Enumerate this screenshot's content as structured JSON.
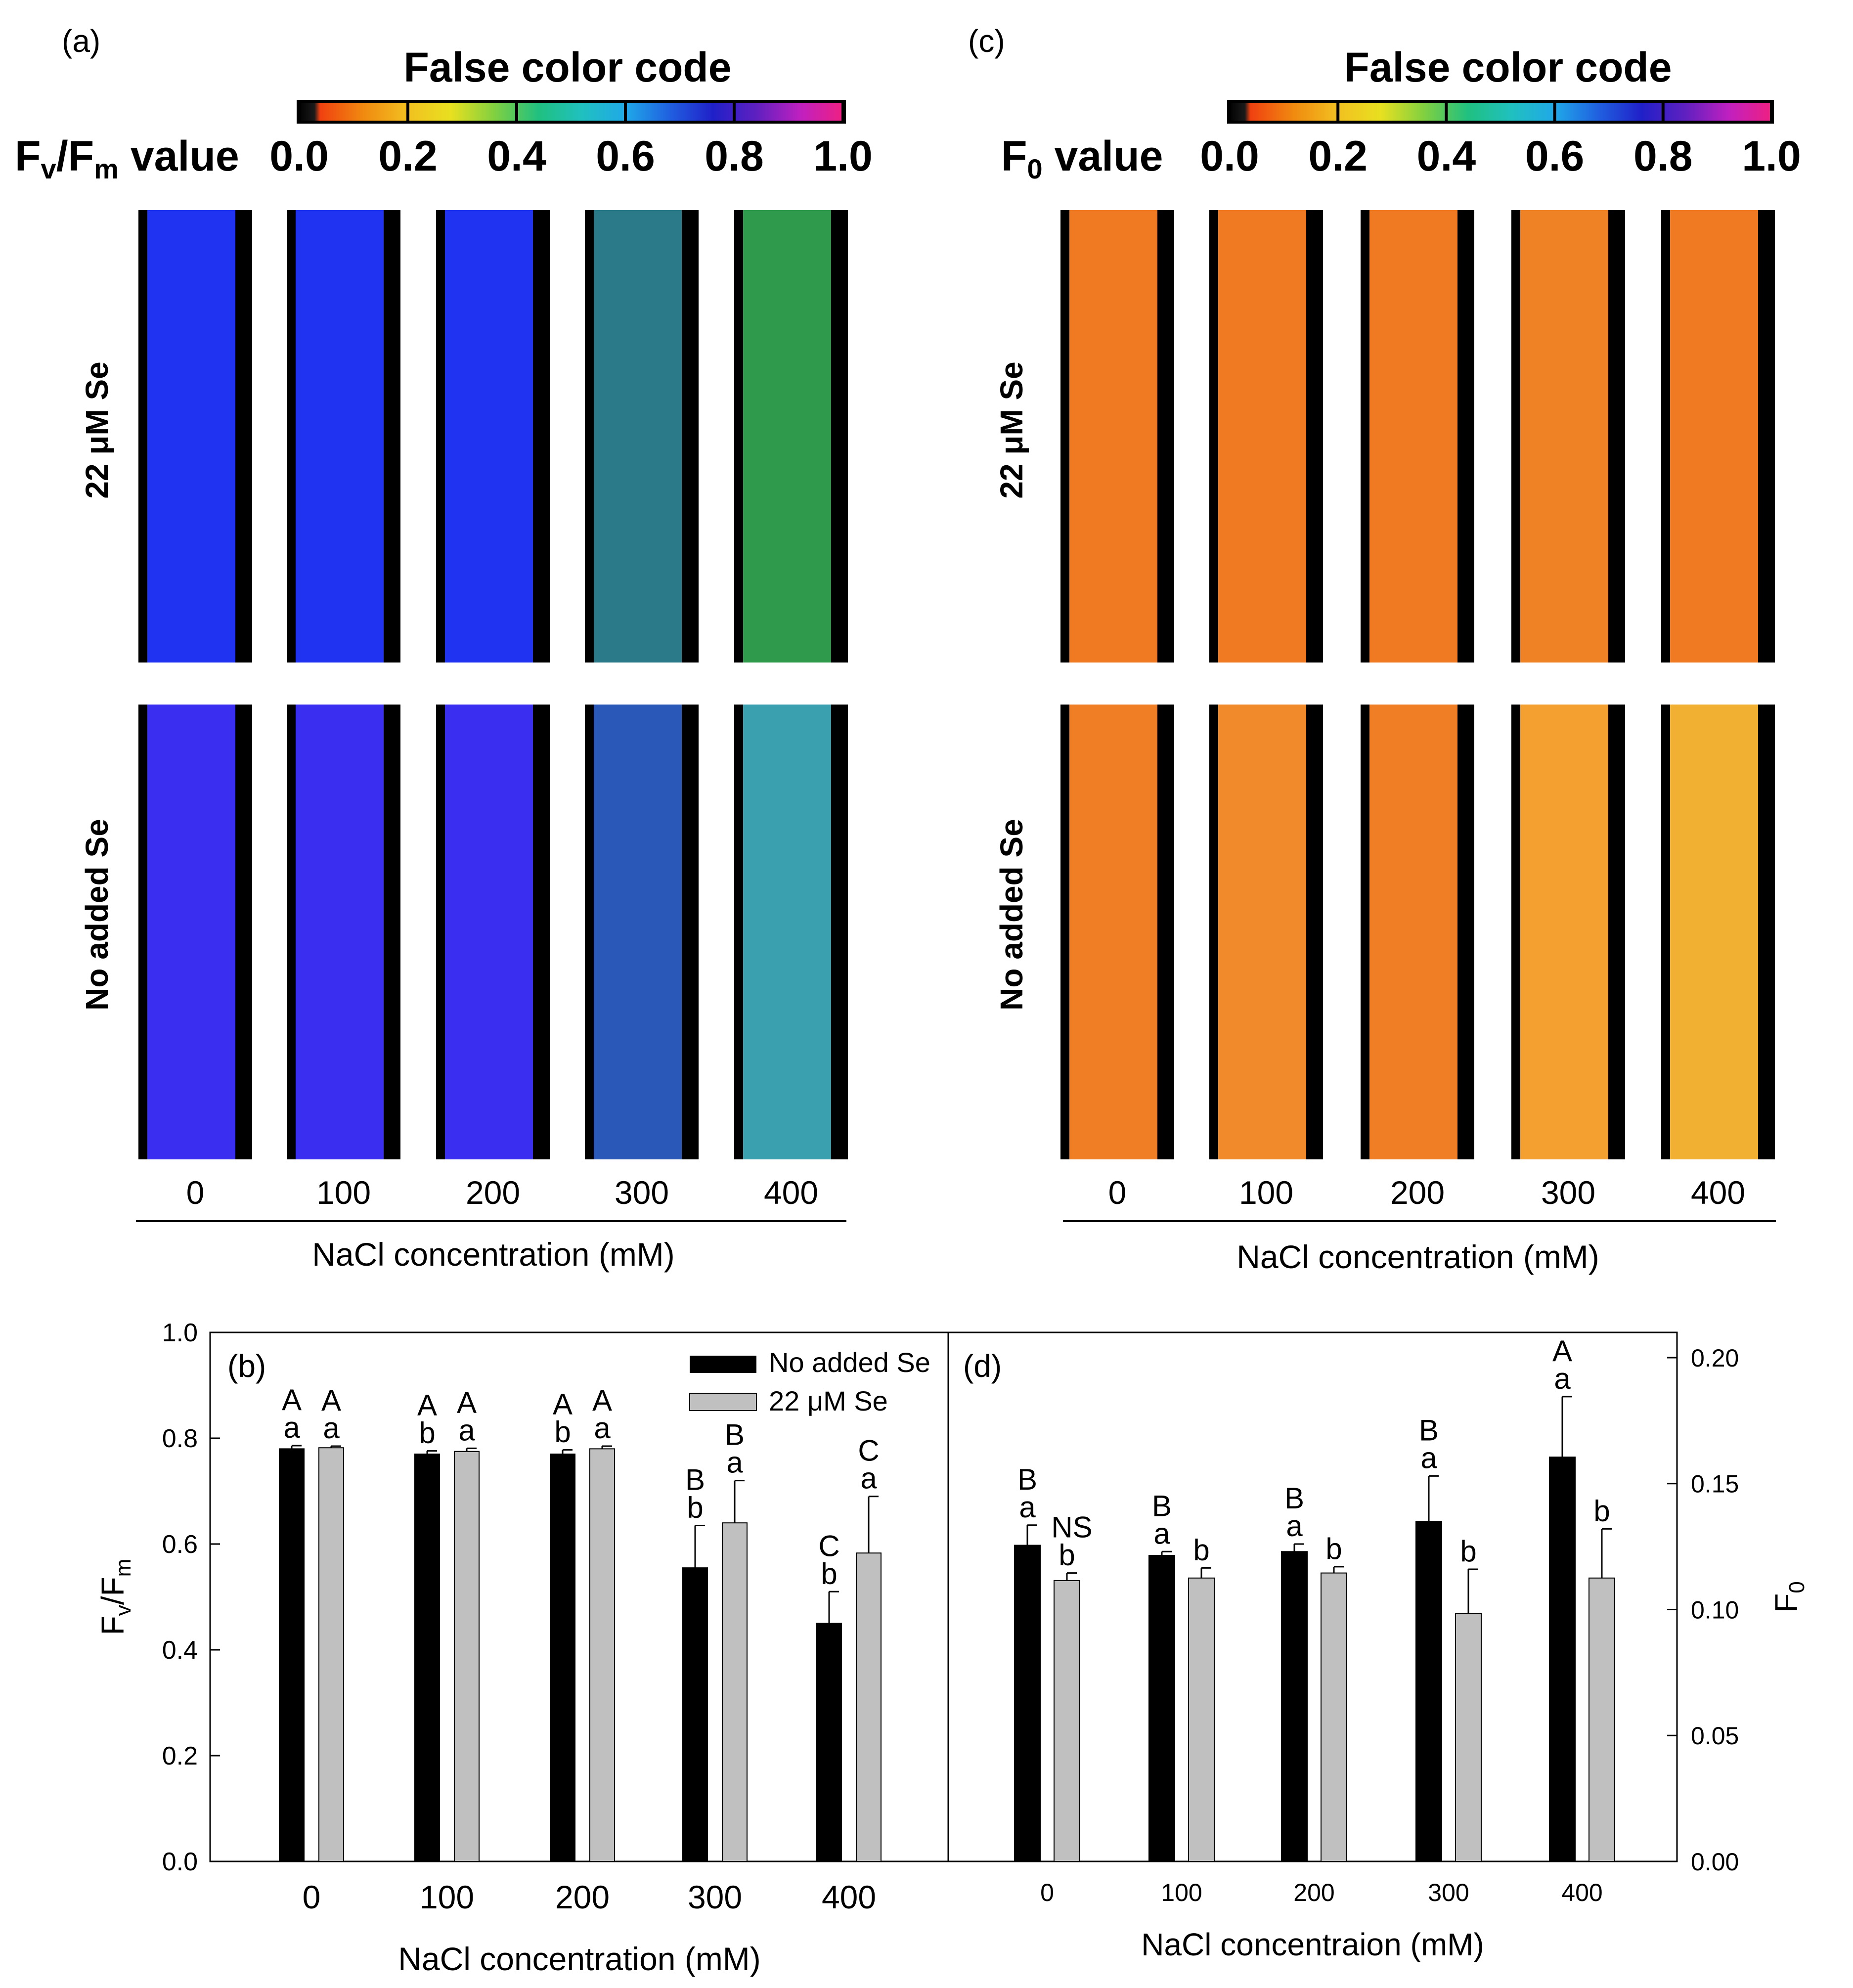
{
  "colors": {
    "black_bar": "#000000",
    "gray_bar": "#c0c0c0",
    "blue_leaf": "#1f33f0",
    "violet_leaf": "#3a2ff0",
    "orange_leaf": "#ef7a22",
    "frame": "#000000"
  },
  "panel_a": {
    "label": "(a)",
    "colorbar_title": "False color code",
    "colorbar_label_main": "F",
    "colorbar_label_sub1": "v",
    "colorbar_label_sep": "/F",
    "colorbar_label_sub2": "m",
    "colorbar_label_tail": " value",
    "colorbar_ticks": [
      "0.0",
      "0.2",
      "0.4",
      "0.6",
      "0.8",
      "1.0"
    ],
    "row_labels": [
      "22 μM Se",
      "No added Se"
    ],
    "columns": [
      "0",
      "100",
      "200",
      "300",
      "400"
    ],
    "xlabel": "NaCl concentration (mM)",
    "leaf_colors": {
      "top": [
        "#1f33f0",
        "#1f33f0",
        "#1f33f0",
        "#2a7a8a",
        "#2f9a4c"
      ],
      "bottom": [
        "#3a2ff0",
        "#3a2ff0",
        "#3a2ff0",
        "#2a58b8",
        "#3aa0b0"
      ]
    }
  },
  "panel_c": {
    "label": "(c)",
    "colorbar_title": "False color code",
    "colorbar_label_main": "F",
    "colorbar_label_sub": "0",
    "colorbar_label_tail": " value",
    "colorbar_ticks": [
      "0.0",
      "0.2",
      "0.4",
      "0.6",
      "0.8",
      "1.0"
    ],
    "row_labels": [
      "22 μM Se",
      "No added Se"
    ],
    "columns": [
      "0",
      "100",
      "200",
      "300",
      "400"
    ],
    "xlabel": "NaCl concentration (mM)",
    "leaf_colors": {
      "top": [
        "#ef7a22",
        "#ef7a22",
        "#ef7a22",
        "#f08226",
        "#ef7a22"
      ],
      "bottom": [
        "#ef7e24",
        "#f08a2a",
        "#ef7e24",
        "#f4a030",
        "#f2b032"
      ]
    }
  },
  "chart_data": [
    {
      "type": "bar",
      "panel": "(b)",
      "categories": [
        "0",
        "100",
        "200",
        "300",
        "400"
      ],
      "xlabel": "NaCl concentration (mM)",
      "ylabel_main": "F",
      "ylabel_sub1": "v",
      "ylabel_sep": "/F",
      "ylabel_sub2": "m",
      "ylim": [
        0.0,
        1.0
      ],
      "yticks": [
        "0.0",
        "0.2",
        "0.4",
        "0.6",
        "0.8",
        "1.0"
      ],
      "legend": [
        "No added Se",
        "22 μM Se"
      ],
      "series": [
        {
          "name": "No added Se",
          "values": [
            0.78,
            0.77,
            0.77,
            0.555,
            0.45
          ],
          "errors": [
            0.006,
            0.006,
            0.008,
            0.08,
            0.06
          ],
          "letters_upper": [
            "A",
            "A",
            "A",
            "B",
            "C"
          ],
          "letters_lower": [
            "a",
            "b",
            "b",
            "b",
            "b"
          ]
        },
        {
          "name": "22 μM Se",
          "values": [
            0.782,
            0.775,
            0.78,
            0.64,
            0.583
          ],
          "errors": [
            0.003,
            0.006,
            0.005,
            0.08,
            0.107
          ],
          "letters_upper": [
            "A",
            "A",
            "A",
            "B",
            "C"
          ],
          "letters_lower": [
            "a",
            "a",
            "a",
            "a",
            "a"
          ]
        }
      ]
    },
    {
      "type": "bar",
      "panel": "(d)",
      "categories": [
        "0",
        "100",
        "200",
        "300",
        "400"
      ],
      "xlabel": "NaCl concentraion (mM)",
      "ylabel_main": "F",
      "ylabel_sub": "0",
      "ylim": [
        0.0,
        0.21
      ],
      "yticks": [
        "0.00",
        "0.05",
        "0.10",
        "0.15",
        "0.20"
      ],
      "series": [
        {
          "name": "No added Se",
          "values": [
            0.1255,
            0.1215,
            0.123,
            0.135,
            0.1605
          ],
          "errors": [
            0.008,
            0.0015,
            0.003,
            0.018,
            0.024
          ],
          "letters_upper": [
            "B",
            "B",
            "B",
            "B",
            "A"
          ],
          "letters_lower": [
            "a",
            "a",
            "a",
            "a",
            "a"
          ]
        },
        {
          "name": "22 μM Se",
          "values": [
            0.1115,
            0.1125,
            0.1145,
            0.0985,
            0.1125
          ],
          "errors": [
            0.003,
            0.004,
            0.0025,
            0.0175,
            0.0195
          ],
          "letters_upper": [
            "NS",
            "",
            "",
            "",
            ""
          ],
          "letters_lower": [
            "b",
            "b",
            "b",
            "b",
            "b"
          ]
        }
      ]
    }
  ]
}
